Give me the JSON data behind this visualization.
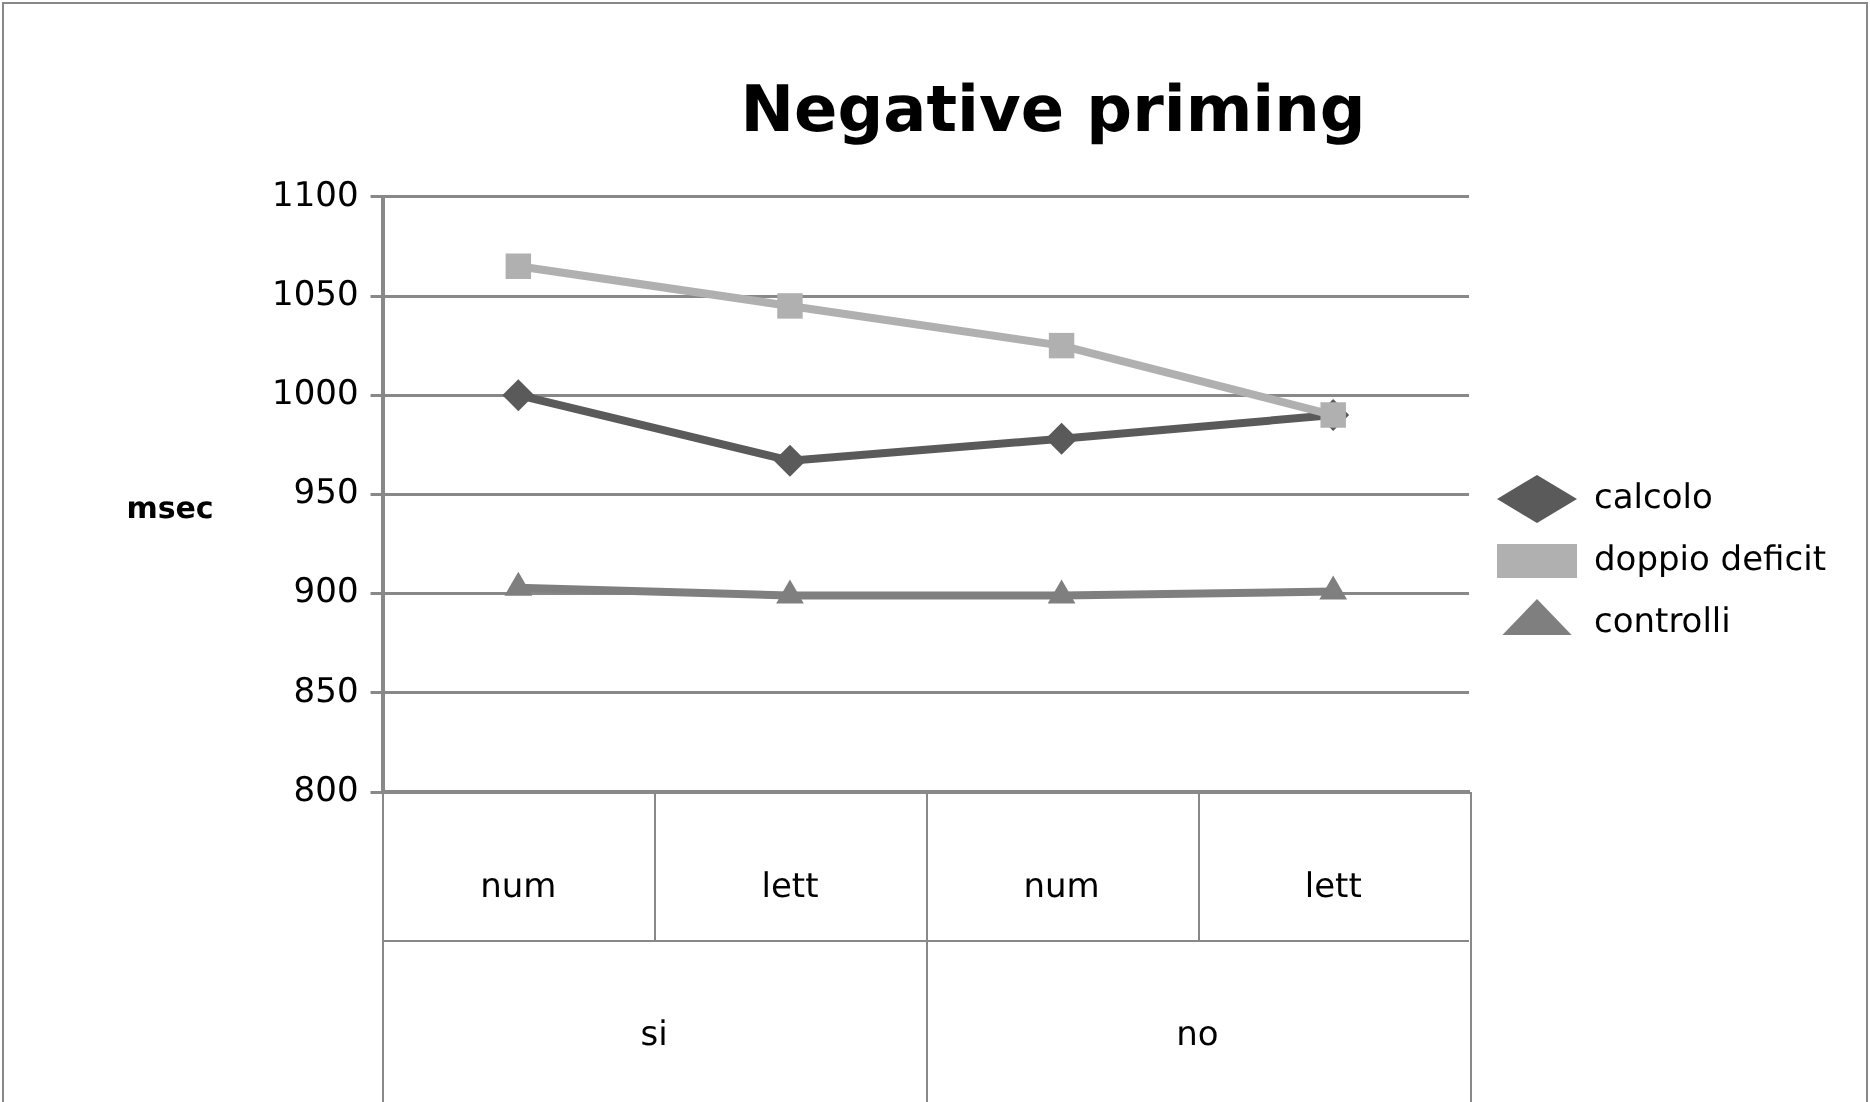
{
  "chart_data": {
    "type": "line",
    "title": "Negative priming",
    "ylabel": "msec",
    "categories": [
      "num",
      "lett",
      "num",
      "lett"
    ],
    "annotations": [
      "si",
      "no"
    ],
    "series": [
      {
        "name": "calcolo",
        "color": "#5a5a5a",
        "marker": "diamond",
        "values": [
          1000,
          967,
          978,
          990
        ]
      },
      {
        "name": "doppio deficit",
        "color": "#b0b0b0",
        "marker": "square",
        "values": [
          1065,
          1045,
          1025,
          990
        ]
      },
      {
        "name": "controlli",
        "color": "#7f7f7f",
        "marker": "triangle",
        "values": [
          903,
          899,
          899,
          901
        ]
      }
    ],
    "ylim": [
      800,
      1100
    ],
    "yticks": [
      800,
      850,
      900,
      950,
      1000,
      1050,
      1100
    ],
    "grid": "y",
    "legend": "right",
    "line_style": "solid"
  }
}
